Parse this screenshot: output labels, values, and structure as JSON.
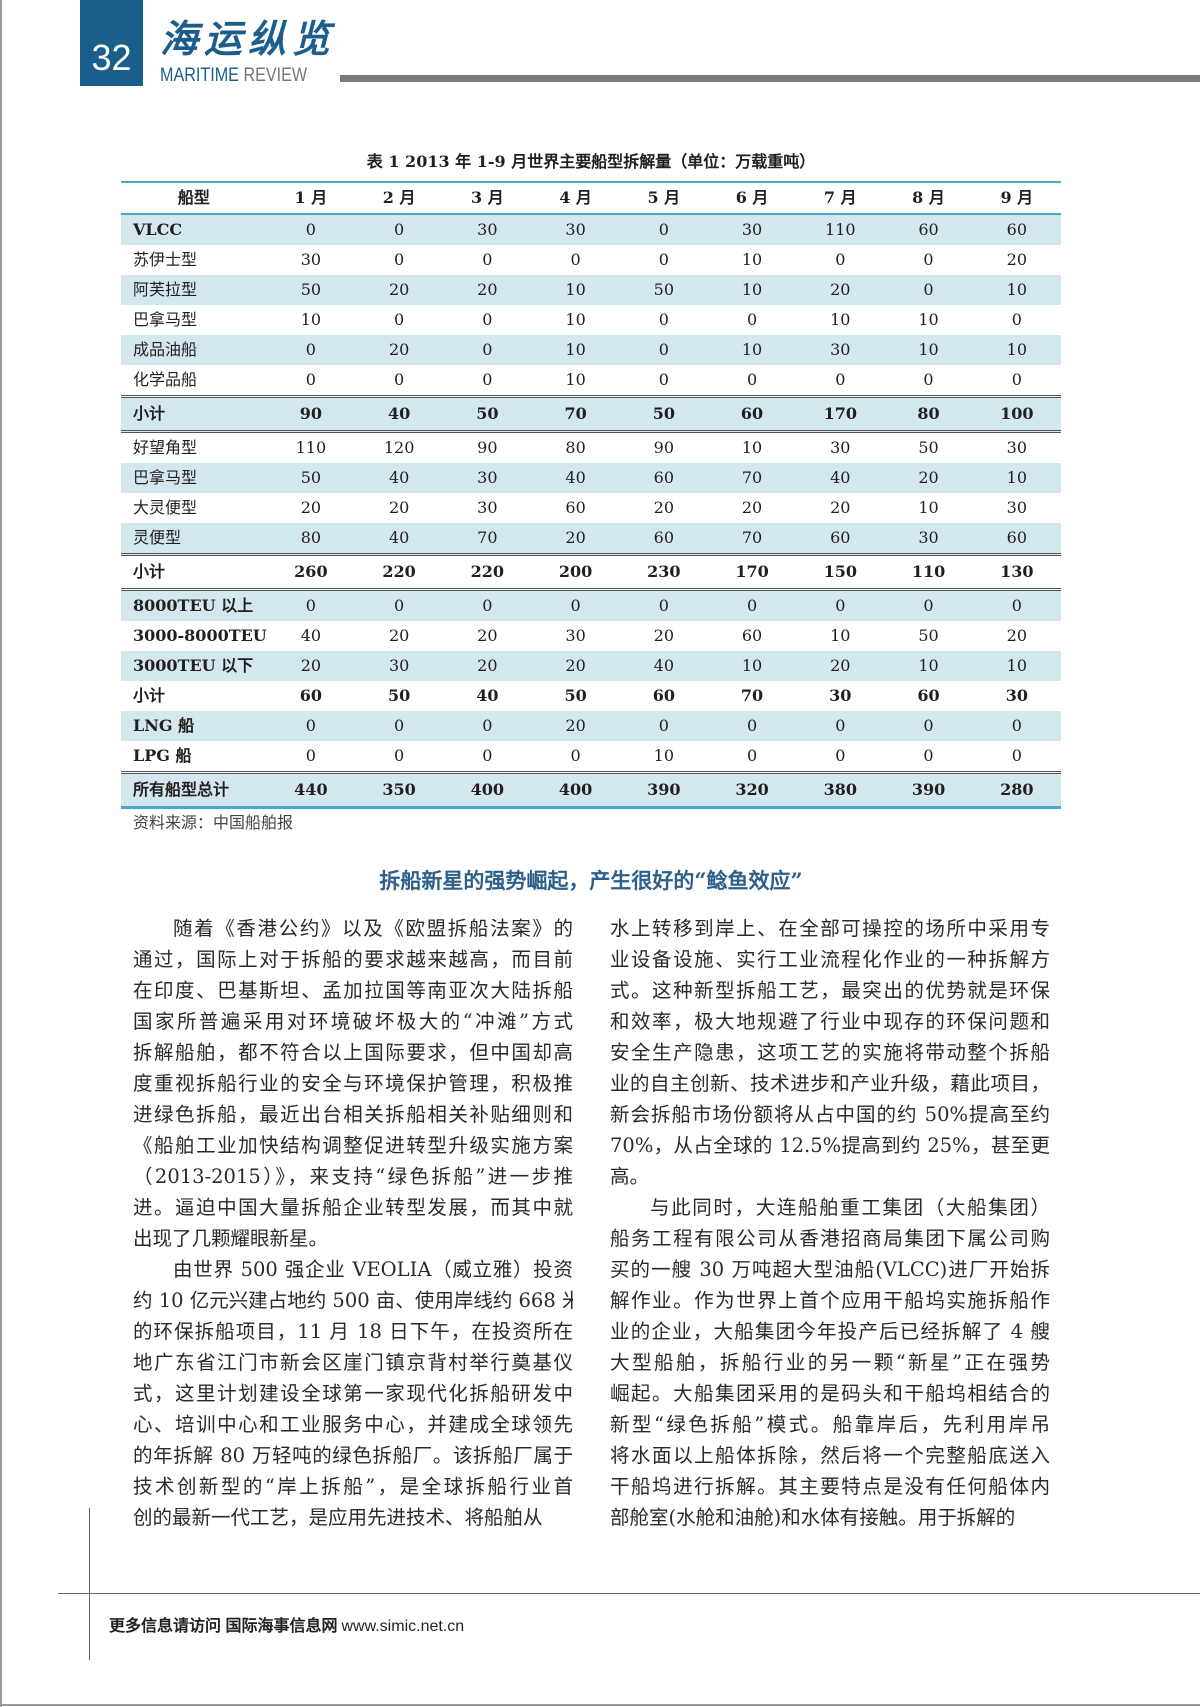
{
  "header": {
    "page_number": "32",
    "magazine_cn": "海运纵览",
    "magazine_en_1": "MARITIME",
    "magazine_en_2": "REVIEW"
  },
  "colors": {
    "brand": "#1a5e8c",
    "row_shade": "#d3e7ee",
    "rule": "#4aa8c4",
    "heading": "#2e5f8a"
  },
  "table": {
    "caption": "表 1 2013 年 1-9 月世界主要船型拆解量（单位：万载重吨）",
    "columns": [
      "船型",
      "1 月",
      "2 月",
      "3 月",
      "4 月",
      "5 月",
      "6 月",
      "7 月",
      "8 月",
      "9 月"
    ],
    "rows": [
      {
        "label": "VLCC",
        "values": [
          "0",
          "0",
          "30",
          "30",
          "0",
          "30",
          "110",
          "60",
          "60"
        ]
      },
      {
        "label": "苏伊士型",
        "values": [
          "30",
          "0",
          "0",
          "0",
          "0",
          "10",
          "0",
          "0",
          "20"
        ]
      },
      {
        "label": "阿芙拉型",
        "values": [
          "50",
          "20",
          "20",
          "10",
          "50",
          "10",
          "20",
          "0",
          "10"
        ]
      },
      {
        "label": "巴拿马型",
        "values": [
          "10",
          "0",
          "0",
          "10",
          "0",
          "0",
          "10",
          "10",
          "0"
        ]
      },
      {
        "label": "成品油船",
        "values": [
          "0",
          "20",
          "0",
          "10",
          "0",
          "10",
          "30",
          "10",
          "10"
        ]
      },
      {
        "label": "化学品船",
        "values": [
          "0",
          "0",
          "0",
          "10",
          "0",
          "0",
          "0",
          "0",
          "0"
        ]
      },
      {
        "label": "小计",
        "subtotal": true,
        "values": [
          "90",
          "40",
          "50",
          "70",
          "50",
          "60",
          "170",
          "80",
          "100"
        ]
      },
      {
        "label": "好望角型",
        "values": [
          "110",
          "120",
          "90",
          "80",
          "90",
          "10",
          "30",
          "50",
          "30"
        ]
      },
      {
        "label": "巴拿马型",
        "values": [
          "50",
          "40",
          "30",
          "40",
          "60",
          "70",
          "40",
          "20",
          "10"
        ]
      },
      {
        "label": "大灵便型",
        "values": [
          "20",
          "20",
          "30",
          "60",
          "20",
          "20",
          "20",
          "10",
          "30"
        ]
      },
      {
        "label": "灵便型",
        "values": [
          "80",
          "40",
          "70",
          "20",
          "60",
          "70",
          "60",
          "30",
          "60"
        ]
      },
      {
        "label": "小计",
        "subtotal": true,
        "values": [
          "260",
          "220",
          "220",
          "200",
          "230",
          "170",
          "150",
          "110",
          "130"
        ]
      },
      {
        "label": "8000TEU 以上",
        "values": [
          "0",
          "0",
          "0",
          "0",
          "0",
          "0",
          "0",
          "0",
          "0"
        ]
      },
      {
        "label": "3000-8000TEU",
        "values": [
          "40",
          "20",
          "20",
          "30",
          "20",
          "60",
          "10",
          "50",
          "20"
        ]
      },
      {
        "label": "3000TEU 以下",
        "values": [
          "20",
          "30",
          "20",
          "20",
          "40",
          "10",
          "20",
          "10",
          "10"
        ]
      },
      {
        "label": "小计",
        "subtotal": true,
        "values": [
          "60",
          "50",
          "40",
          "50",
          "60",
          "70",
          "30",
          "60",
          "30"
        ]
      },
      {
        "label": "LNG 船",
        "values": [
          "0",
          "0",
          "0",
          "20",
          "0",
          "0",
          "0",
          "0",
          "0"
        ]
      },
      {
        "label": "LPG 船",
        "values": [
          "0",
          "0",
          "0",
          "0",
          "10",
          "0",
          "0",
          "0",
          "0"
        ]
      },
      {
        "label": "所有船型总计",
        "total": true,
        "values": [
          "440",
          "350",
          "400",
          "400",
          "390",
          "320",
          "380",
          "390",
          "280"
        ]
      }
    ],
    "source": "资料来源：中国船舶报"
  },
  "article": {
    "heading": "拆船新星的强势崛起，产生很好的“鲶鱼效应”",
    "left_lines": [
      "随着《香港公约》以及《欧盟拆船法案》的",
      "通过，国际上对于拆船的要求越来越高，而目前",
      "在印度、巴基斯坦、孟加拉国等南亚次大陆拆船",
      "国家所普遍采用对环境破坏极大的“冲滩”方式",
      "拆解船舶，都不符合以上国际要求，但中国却高",
      "度重视拆船行业的安全与环境保护管理，积极推",
      "进绿色拆船，最近出台相关拆船相关补贴细则和",
      "《船舶工业加快结构调整促进转型升级实施方案",
      "（2013-2015）》，来支持“绿色拆船”进一步推",
      "进。逼迫中国大量拆船企业转型发展，而其中就",
      "出现了几颗耀眼新星。",
      "由世界 500 强企业 VEOLIA（威立雅）投资",
      "约 10 亿元兴建占地约 500 亩、使用岸线约 668 米",
      "的环保拆船项目，11 月 18 日下午，在投资所在",
      "地广东省江门市新会区崖门镇京背村举行奠基仪",
      "式，这里计划建设全球第一家现代化拆船研发中",
      "心、培训中心和工业服务中心，并建成全球领先",
      "的年拆解 80 万轻吨的绿色拆船厂。该拆船厂属于",
      "技术创新型的“岸上拆船”，是全球拆船行业首",
      "创的最新一代工艺，是应用先进技术、将船舶从"
    ],
    "right_lines": [
      "水上转移到岸上、在全部可操控的场所中采用专",
      "业设备设施、实行工业流程化作业的一种拆解方",
      "式。这种新型拆船工艺，最突出的优势就是环保",
      "和效率，极大地规避了行业中现存的环保问题和",
      "安全生产隐患，这项工艺的实施将带动整个拆船",
      "业的自主创新、技术进步和产业升级，藉此项目，",
      "新会拆船市场份额将从占中国的约 50%提高至约",
      "70%，从占全球的 12.5%提高到约 25%，甚至更",
      "高。",
      "与此同时，大连船舶重工集团（大船集团）",
      "船务工程有限公司从香港招商局集团下属公司购",
      "买的一艘 30 万吨超大型油船(VLCC)进厂开始拆",
      "解作业。作为世界上首个应用干船坞实施拆船作",
      "业的企业，大船集团今年投产后已经拆解了 4 艘",
      "大型船舶，拆船行业的另一颗“新星”正在强势",
      "崛起。大船集团采用的是码头和干船坞相结合的",
      "新型“绿色拆船”模式。船靠岸后，先利用岸吊",
      "将水面以上船体拆除，然后将一个完整船底送入",
      "干船坞进行拆解。其主要特点是没有任何船体内",
      "部舱室(水舱和油舱)和水体有接触。用于拆解的"
    ]
  },
  "footer": {
    "text": "更多信息请访问 国际海事信息网",
    "url": "www.simic.net.cn"
  }
}
